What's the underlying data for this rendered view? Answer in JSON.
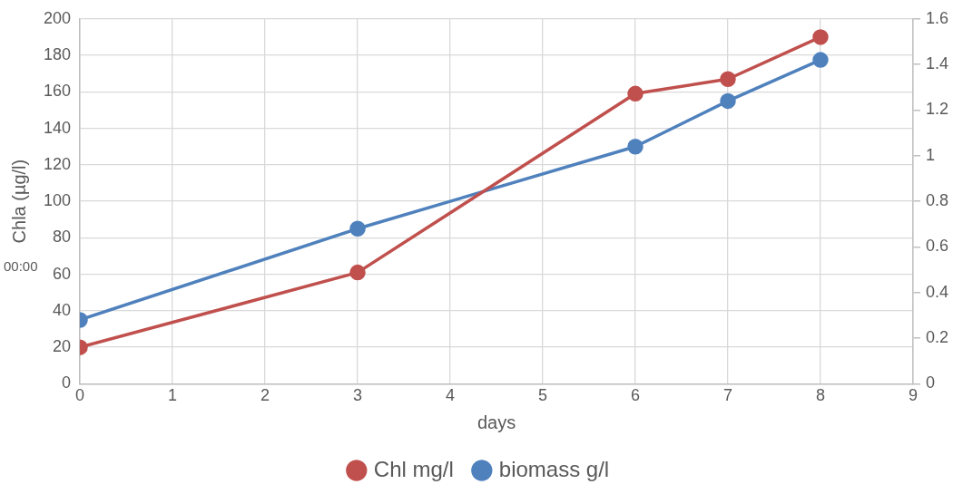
{
  "chart_data": {
    "type": "line",
    "xlabel": "days",
    "ylabel": "Chla (µg/l)",
    "x": [
      0,
      3,
      6,
      7,
      8
    ],
    "xlim": [
      0,
      9
    ],
    "xticks": [
      0,
      1,
      2,
      3,
      4,
      5,
      6,
      7,
      8,
      9
    ],
    "ylim": [
      0,
      200
    ],
    "yticks": [
      0,
      20,
      40,
      60,
      80,
      100,
      120,
      140,
      160,
      180,
      200
    ],
    "y2lim": [
      0,
      1.6
    ],
    "y2ticks": [
      0,
      0.2,
      0.4,
      0.6,
      0.8,
      1,
      1.2,
      1.4,
      1.6
    ],
    "series": [
      {
        "name": "Chl mg/l",
        "color": "#c0504d",
        "values": [
          20,
          61,
          159,
          167,
          190
        ]
      },
      {
        "name": "biomass g/l",
        "color": "#4f81bd",
        "axis": "y2",
        "values": [
          0.28,
          0.68,
          1.04,
          1.24,
          1.42
        ]
      }
    ],
    "annotations": [
      "00:00"
    ],
    "grid": true,
    "legend": "bottom",
    "marker": "circle",
    "line_style": "solid"
  }
}
